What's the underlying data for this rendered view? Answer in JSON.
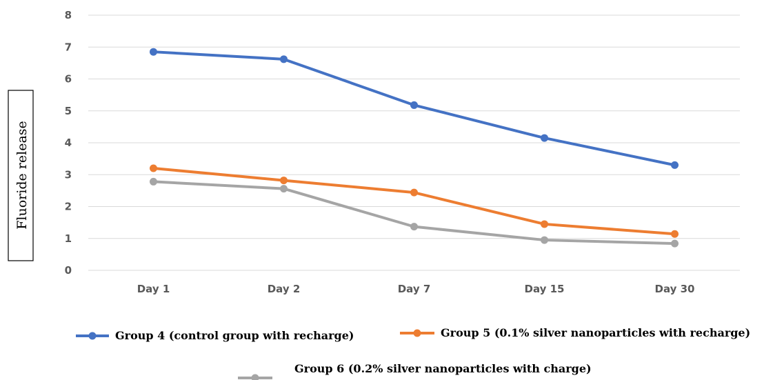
{
  "chart_data": {
    "type": "line",
    "title": "",
    "xlabel": "",
    "ylabel": "Fluoride release",
    "categories": [
      "Day 1",
      "Day 2",
      "Day 7",
      "Day 15",
      "Day 30"
    ],
    "ylim": [
      0,
      8
    ],
    "yticks": [
      0,
      1,
      2,
      3,
      4,
      5,
      6,
      7,
      8
    ],
    "grid": true,
    "legend_position": "bottom",
    "series": [
      {
        "name": "Group 4 (control group with recharge)",
        "color": "#4472C4",
        "values": [
          6.85,
          6.62,
          5.18,
          4.15,
          3.3
        ]
      },
      {
        "name": "Group 5 (0.1% silver nanoparticles with recharge)",
        "color": "#ED7D31",
        "values": [
          3.2,
          2.82,
          2.44,
          1.45,
          1.14
        ]
      },
      {
        "name": "Group 6 (0.2% silver nanoparticles with charge)",
        "color": "#A5A5A5",
        "values": [
          2.78,
          2.56,
          1.37,
          0.95,
          0.84
        ]
      }
    ]
  }
}
